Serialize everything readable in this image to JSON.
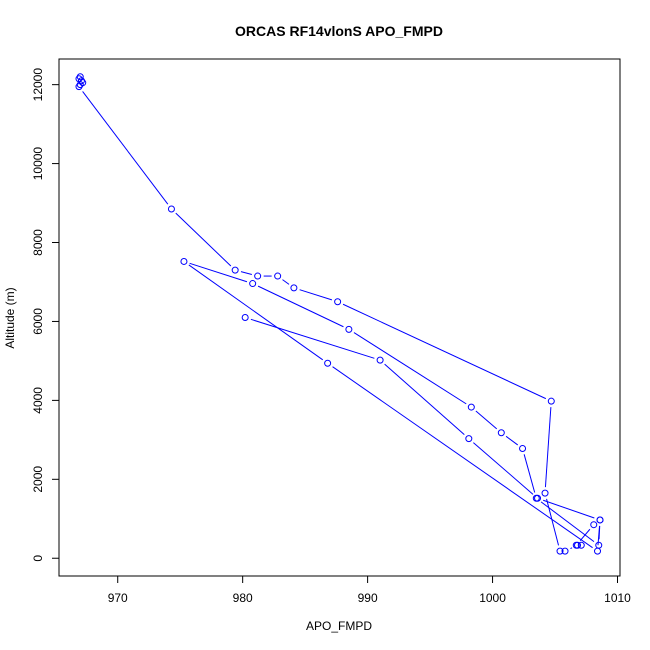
{
  "chart_data": {
    "type": "line",
    "title": "ORCAS RF14vlonS APO_FMPD",
    "xlabel": "APO_FMPD",
    "ylabel": "Altitude (m)",
    "xlim": [
      965.3,
      1010.2
    ],
    "ylim": [
      -450,
      12650
    ],
    "xticks": [
      970,
      980,
      990,
      1000,
      1010
    ],
    "yticks": [
      0,
      2000,
      4000,
      6000,
      8000,
      10000,
      12000
    ],
    "series_color": "#0000ff",
    "markers": "open-circle",
    "grid": false,
    "legend": "none",
    "series": [
      {
        "x": [
          967.0,
          966.9,
          967.1,
          967.2,
          967.0,
          966.9,
          974.3,
          979.4,
          981.2,
          982.8,
          984.1,
          987.6,
          1004.7,
          1004.2,
          1005.4,
          1005.8,
          1006.8,
          1007.1,
          1006.7,
          1008.1,
          1008.6,
          1008.5,
          1003.5,
          1002.4,
          1000.7,
          998.3,
          988.5,
          980.8,
          975.3,
          986.8,
          1008.4,
          1008.6,
          1003.6,
          998.1,
          991.0,
          980.2
        ]
      },
      {
        "y": [
          12200,
          12150,
          12100,
          12050,
          12000,
          11950,
          8850,
          7300,
          7150,
          7150,
          6850,
          6500,
          3980,
          1650,
          180,
          180,
          330,
          330,
          330,
          850,
          970,
          330,
          1520,
          2780,
          3180,
          3830,
          5800,
          6960,
          7520,
          4940,
          180,
          970,
          1520,
          3030,
          5020,
          6100
        ]
      }
    ]
  }
}
